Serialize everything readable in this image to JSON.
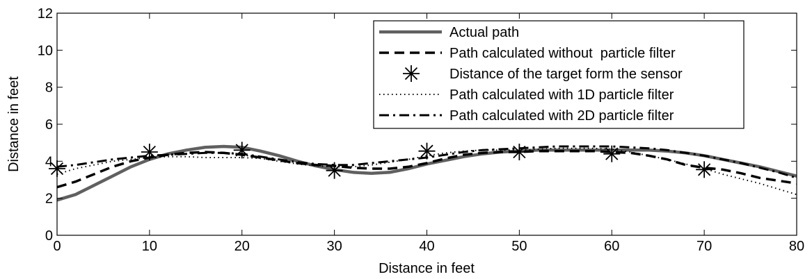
{
  "chart_data": {
    "type": "line",
    "title": "",
    "xlabel": "Distance in feet",
    "ylabel": "Distance in feet",
    "xlim": [
      0,
      80
    ],
    "ylim": [
      0,
      12
    ],
    "x_ticks": [
      0,
      10,
      20,
      30,
      40,
      50,
      60,
      70,
      80
    ],
    "y_ticks": [
      0,
      2,
      4,
      6,
      8,
      10,
      12
    ],
    "grid": false,
    "legend_position": "top-right",
    "series": [
      {
        "name": "Actual path",
        "style": "solid-thick",
        "color": "#606060",
        "x": [
          0,
          2,
          4,
          6,
          8,
          10,
          12,
          14,
          16,
          18,
          20,
          22,
          24,
          26,
          28,
          30,
          32,
          34,
          36,
          38,
          40,
          42,
          44,
          46,
          48,
          50,
          52,
          54,
          56,
          58,
          60,
          62,
          64,
          66,
          68,
          70,
          72,
          74,
          76,
          78,
          80
        ],
        "y": [
          1.9,
          2.2,
          2.7,
          3.2,
          3.7,
          4.1,
          4.4,
          4.6,
          4.75,
          4.8,
          4.75,
          4.55,
          4.3,
          4.0,
          3.75,
          3.55,
          3.4,
          3.35,
          3.4,
          3.6,
          3.85,
          4.05,
          4.25,
          4.4,
          4.5,
          4.55,
          4.6,
          4.6,
          4.6,
          4.6,
          4.6,
          4.6,
          4.6,
          4.55,
          4.45,
          4.3,
          4.1,
          3.9,
          3.7,
          3.45,
          3.2
        ]
      },
      {
        "name": "Path calculated without  particle filter",
        "style": "dashed",
        "color": "#000000",
        "x": [
          0,
          2,
          4,
          6,
          8,
          10,
          12,
          14,
          16,
          18,
          20,
          22,
          24,
          26,
          28,
          30,
          32,
          34,
          36,
          38,
          40,
          42,
          44,
          46,
          48,
          50,
          52,
          54,
          56,
          58,
          60,
          62,
          64,
          66,
          68,
          70,
          72,
          74,
          76,
          78,
          80
        ],
        "y": [
          2.6,
          2.9,
          3.3,
          3.7,
          4.0,
          4.2,
          4.35,
          4.45,
          4.5,
          4.45,
          4.35,
          4.2,
          4.05,
          3.9,
          3.8,
          3.75,
          3.65,
          3.6,
          3.6,
          3.7,
          3.9,
          4.15,
          4.35,
          4.45,
          4.5,
          4.5,
          4.55,
          4.55,
          4.55,
          4.55,
          4.5,
          4.45,
          4.3,
          4.1,
          3.8,
          3.65,
          3.55,
          3.35,
          3.1,
          2.95,
          2.8
        ]
      },
      {
        "name": "Distance of the target form the sensor",
        "style": "markers",
        "marker": "asterisk",
        "color": "#000000",
        "x": [
          0,
          10,
          20,
          30,
          40,
          50,
          60,
          70
        ],
        "y": [
          3.6,
          4.5,
          4.6,
          3.5,
          4.55,
          4.5,
          4.4,
          3.55
        ]
      },
      {
        "name": "Path calculated with 1D particle filter",
        "style": "dotted",
        "color": "#000000",
        "x": [
          0,
          2,
          4,
          6,
          8,
          10,
          12,
          14,
          16,
          18,
          20,
          22,
          24,
          26,
          28,
          30,
          32,
          34,
          36,
          38,
          40,
          42,
          44,
          46,
          48,
          50,
          52,
          54,
          56,
          58,
          60,
          62,
          64,
          66,
          68,
          70,
          72,
          74,
          76,
          78,
          80
        ],
        "y": [
          3.3,
          3.6,
          3.8,
          4.0,
          4.1,
          4.2,
          4.25,
          4.25,
          4.2,
          4.2,
          4.2,
          4.15,
          4.0,
          3.85,
          3.75,
          3.7,
          3.7,
          3.8,
          3.95,
          4.1,
          4.3,
          4.45,
          4.55,
          4.6,
          4.6,
          4.6,
          4.65,
          4.7,
          4.7,
          4.7,
          4.65,
          4.5,
          4.3,
          4.1,
          3.85,
          3.6,
          3.3,
          3.05,
          2.8,
          2.5,
          2.2
        ]
      },
      {
        "name": "Path calculated with 2D particle filter",
        "style": "dashdot",
        "color": "#000000",
        "x": [
          0,
          2,
          4,
          6,
          8,
          10,
          12,
          14,
          16,
          18,
          20,
          22,
          24,
          26,
          28,
          30,
          32,
          34,
          36,
          38,
          40,
          42,
          44,
          46,
          48,
          50,
          52,
          54,
          56,
          58,
          60,
          62,
          64,
          66,
          68,
          70,
          72,
          74,
          76,
          78,
          80
        ],
        "y": [
          3.7,
          3.8,
          3.95,
          4.1,
          4.2,
          4.3,
          4.35,
          4.4,
          4.45,
          4.45,
          4.4,
          4.25,
          4.1,
          3.95,
          3.85,
          3.8,
          3.8,
          3.9,
          4.0,
          4.1,
          4.2,
          4.35,
          4.5,
          4.6,
          4.65,
          4.7,
          4.75,
          4.8,
          4.8,
          4.8,
          4.8,
          4.75,
          4.7,
          4.6,
          4.45,
          4.3,
          4.1,
          3.9,
          3.65,
          3.4,
          3.1
        ]
      }
    ]
  }
}
